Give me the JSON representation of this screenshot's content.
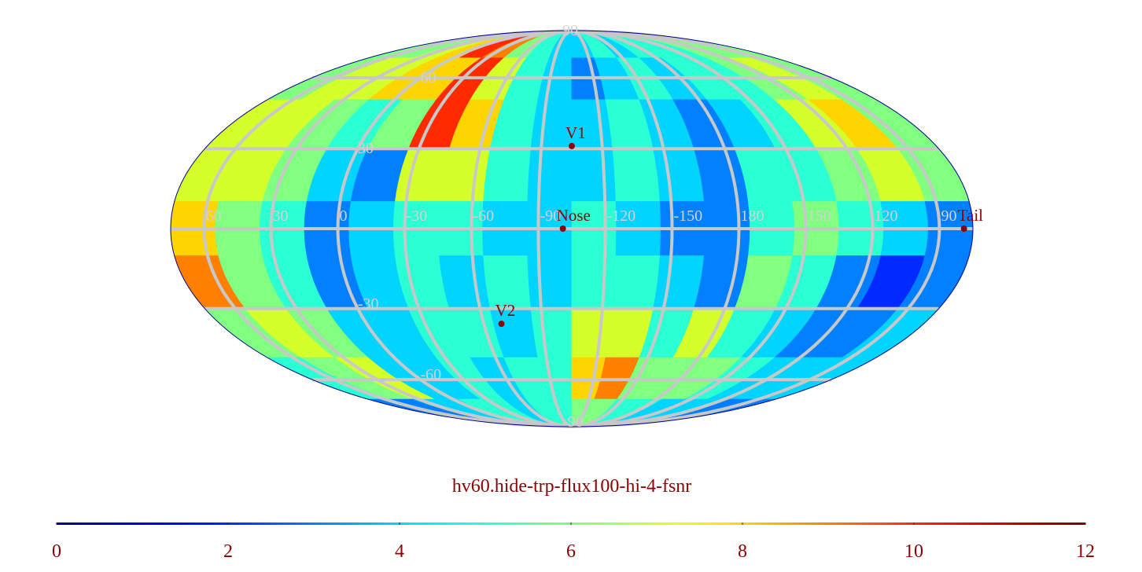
{
  "chart_data": {
    "type": "map",
    "projection": "mollweide",
    "center_lon": -105,
    "title": "hv60.hide-trp-flux100-hi-4-fsnr",
    "lon_ticks": [
      60,
      30,
      0,
      -30,
      -60,
      -90,
      -120,
      -150,
      180,
      150,
      120,
      90
    ],
    "lat_ticks": [
      90,
      60,
      30,
      -30,
      -60,
      -90
    ],
    "clim": [
      0,
      12
    ],
    "cticks": [
      0,
      2,
      4,
      6,
      8,
      10,
      12
    ],
    "colormap": "jet",
    "values": [
      [
        6,
        6,
        7,
        8,
        10,
        9,
        6,
        5,
        4,
        4,
        5,
        4,
        5,
        5,
        5,
        6,
        6,
        6
      ],
      [
        6,
        7,
        7,
        8,
        8,
        10,
        7,
        5,
        4,
        3,
        4,
        5,
        4,
        5,
        5,
        6,
        7,
        6
      ],
      [
        7,
        7,
        6,
        5,
        6,
        10,
        8,
        5,
        4,
        4,
        5,
        4,
        3,
        4,
        5,
        7,
        8,
        6
      ],
      [
        7,
        7,
        6,
        4,
        3,
        7,
        7,
        5,
        4,
        4,
        5,
        4,
        3,
        5,
        5,
        6,
        7,
        6
      ],
      [
        8,
        6,
        5,
        3,
        4,
        5,
        5,
        4,
        4,
        5,
        4,
        3,
        3,
        5,
        6,
        5,
        4,
        3
      ],
      [
        9,
        6,
        5,
        3,
        4,
        5,
        4,
        5,
        4,
        5,
        5,
        4,
        3,
        6,
        5,
        3,
        2,
        3
      ],
      [
        6,
        7,
        6,
        4,
        4,
        5,
        5,
        4,
        5,
        7,
        7,
        5,
        7,
        5,
        4,
        3,
        3,
        4
      ],
      [
        5,
        6,
        7,
        4,
        4,
        5,
        4,
        5,
        5,
        8,
        9,
        6,
        6,
        6,
        5,
        4,
        4,
        4
      ],
      [
        3,
        3,
        4,
        4,
        5,
        5,
        4,
        5,
        5,
        6,
        6,
        5,
        5,
        4,
        4,
        4,
        3,
        3
      ]
    ],
    "points": [
      {
        "label": "Nose",
        "lon": -101,
        "lat": 0
      },
      {
        "label": "V1",
        "lon": -105,
        "lat": 31
      },
      {
        "label": "V2",
        "lon": -69,
        "lat": -36
      },
      {
        "label": "Tail",
        "lon": 79,
        "lat": 0
      }
    ],
    "point_color": "#8b0000"
  }
}
